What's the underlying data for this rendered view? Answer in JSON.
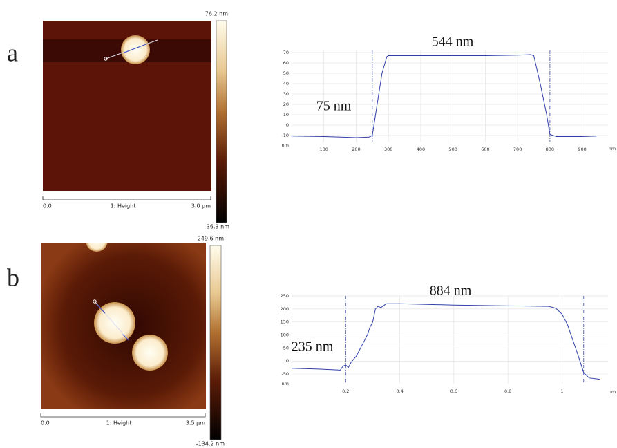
{
  "panels": [
    {
      "label": "a",
      "image": {
        "colorbar_max": "76.2 nm",
        "colorbar_min": "-36.3 nm",
        "scale_start": "0.0",
        "channel": "1: Height",
        "scale_end": "3.0 µm"
      }
    },
    {
      "label": "b",
      "image": {
        "colorbar_max": "249.6 nm",
        "colorbar_min": "-134.2 nm",
        "scale_start": "0.0",
        "channel": "1: Height",
        "scale_end": "3.5 µm"
      }
    }
  ],
  "chart_data": [
    {
      "type": "line",
      "color": "#3040a8",
      "grid": true,
      "x_unit": "nm",
      "y_unit": "nm",
      "annotations": [
        "544 nm",
        "75 nm"
      ],
      "cursors": [
        250,
        800
      ],
      "x": [
        0,
        100,
        200,
        240,
        250,
        260,
        280,
        295,
        300,
        400,
        500,
        600,
        700,
        740,
        750,
        770,
        790,
        800,
        820,
        900,
        945
      ],
      "values": [
        -10.5,
        -11,
        -12,
        -11.5,
        -10,
        10,
        50,
        66,
        67,
        67,
        67,
        67,
        67.5,
        68,
        67,
        40,
        10,
        -9,
        -11,
        -11,
        -10.5
      ],
      "xlim": [
        0,
        980
      ],
      "xticks": [
        100,
        200,
        300,
        400,
        500,
        600,
        700,
        800,
        900
      ],
      "ylim": [
        -16,
        72
      ],
      "yticks": [
        70,
        60,
        50,
        40,
        30,
        20,
        10,
        0,
        -10
      ]
    },
    {
      "type": "line",
      "color": "#3040a8",
      "grid": true,
      "x_unit": "µm",
      "y_unit": "nm",
      "annotations": [
        "884 nm",
        "235 nm"
      ],
      "cursors": [
        0.2,
        1.08
      ],
      "x": [
        0,
        0.1,
        0.18,
        0.19,
        0.2,
        0.21,
        0.22,
        0.24,
        0.25,
        0.27,
        0.28,
        0.29,
        0.3,
        0.31,
        0.32,
        0.33,
        0.35,
        0.4,
        0.6,
        0.8,
        0.95,
        0.97,
        0.98,
        1.0,
        1.02,
        1.04,
        1.06,
        1.08,
        1.1,
        1.14
      ],
      "values": [
        -28,
        -31,
        -35,
        -20,
        -15,
        -25,
        -5,
        20,
        40,
        80,
        100,
        130,
        150,
        200,
        210,
        205,
        220,
        220,
        215,
        212,
        210,
        205,
        200,
        180,
        140,
        80,
        20,
        -45,
        -65,
        -70
      ],
      "xlim": [
        0,
        1.17
      ],
      "xticks": [
        0.2,
        0.4,
        0.6,
        0.8,
        1
      ],
      "ylim": [
        -87,
        250
      ],
      "yticks": [
        250,
        200,
        150,
        100,
        50,
        0,
        -50
      ]
    }
  ]
}
